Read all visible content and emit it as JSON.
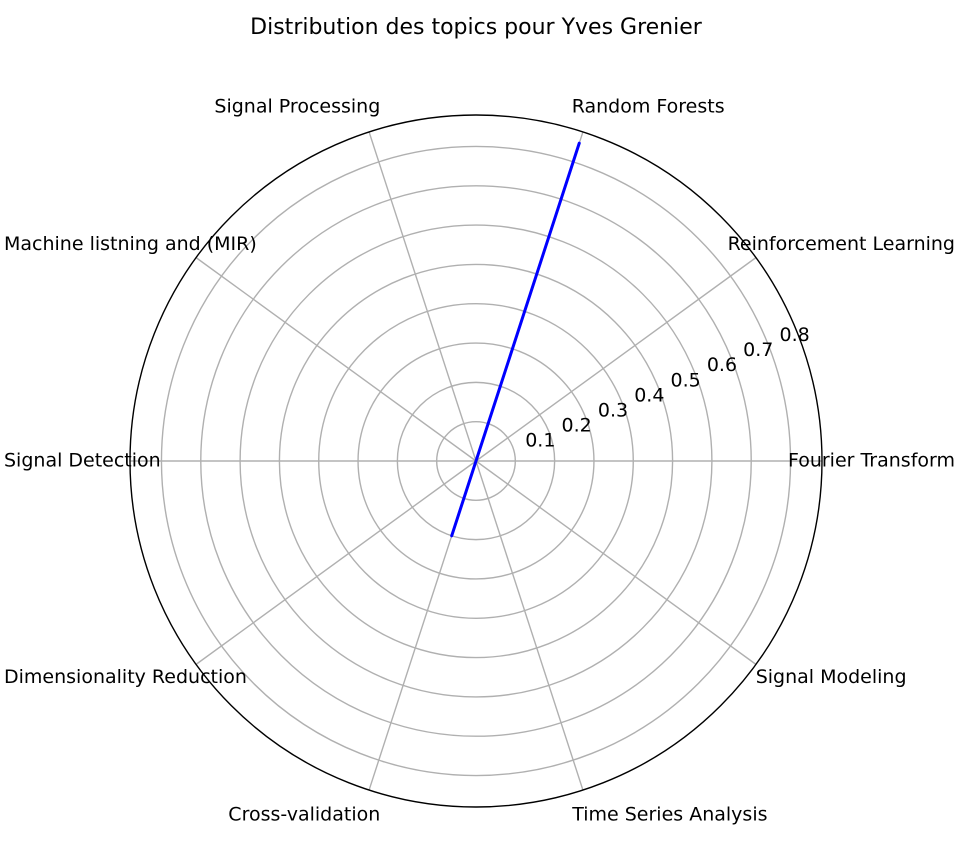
{
  "chart_data": {
    "type": "radar",
    "title": "Distribution des topics pour Yves Grenier",
    "categories": [
      "Fourier Transform",
      "Reinforcement Learning",
      "Random Forests",
      "Signal Processing",
      "Machine listning and (MIR)",
      "Signal Detection",
      "Dimensionality Reduction",
      "Cross-validation",
      "Time Series Analysis",
      "Signal Modeling"
    ],
    "series": [
      {
        "values": [
          0,
          0,
          0.85,
          0,
          0,
          0,
          0,
          0.2,
          0,
          0
        ],
        "color": "#0000ff"
      }
    ],
    "rlim": [
      0,
      0.88
    ],
    "rticks": [
      0.1,
      0.2,
      0.3,
      0.4,
      0.5,
      0.6,
      0.7,
      0.8
    ],
    "rtick_labels": [
      "0.1",
      "0.2",
      "0.3",
      "0.4",
      "0.5",
      "0.6",
      "0.7",
      "0.8"
    ],
    "grid": true,
    "colors": {
      "grid": "#b0b0b0",
      "outline": "#000000",
      "series": "#0000ff"
    }
  }
}
